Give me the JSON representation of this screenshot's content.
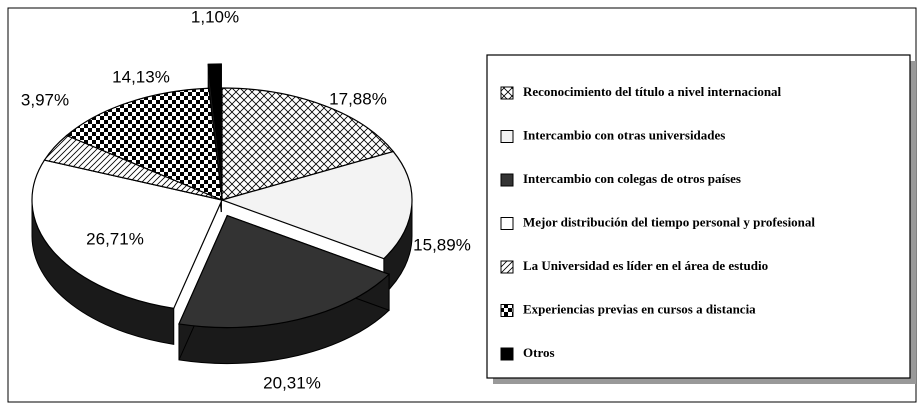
{
  "chart_data": {
    "type": "pie",
    "categories": [
      "Reconocimiento del título a nivel internacional",
      "Intercambio con otras universidades",
      "Intercambio con colegas de otros países",
      "Mejor distribución del tiempo personal y profesional",
      "La Universidad es líder en el área de estudio",
      "Experiencias previas en cursos a distancia",
      "Otros"
    ],
    "values": [
      17.88,
      15.89,
      20.31,
      26.71,
      3.97,
      14.13,
      1.1
    ],
    "value_labels": [
      "17,88%",
      "15,89%",
      "20,31%",
      "26,71%",
      "3,97%",
      "14,13%",
      "1,10%"
    ],
    "colors": [
      "#ffffff",
      "#f3f3f3",
      "#333333",
      "#ffffff",
      "#ffffff",
      "#000000",
      "#000000"
    ]
  }
}
